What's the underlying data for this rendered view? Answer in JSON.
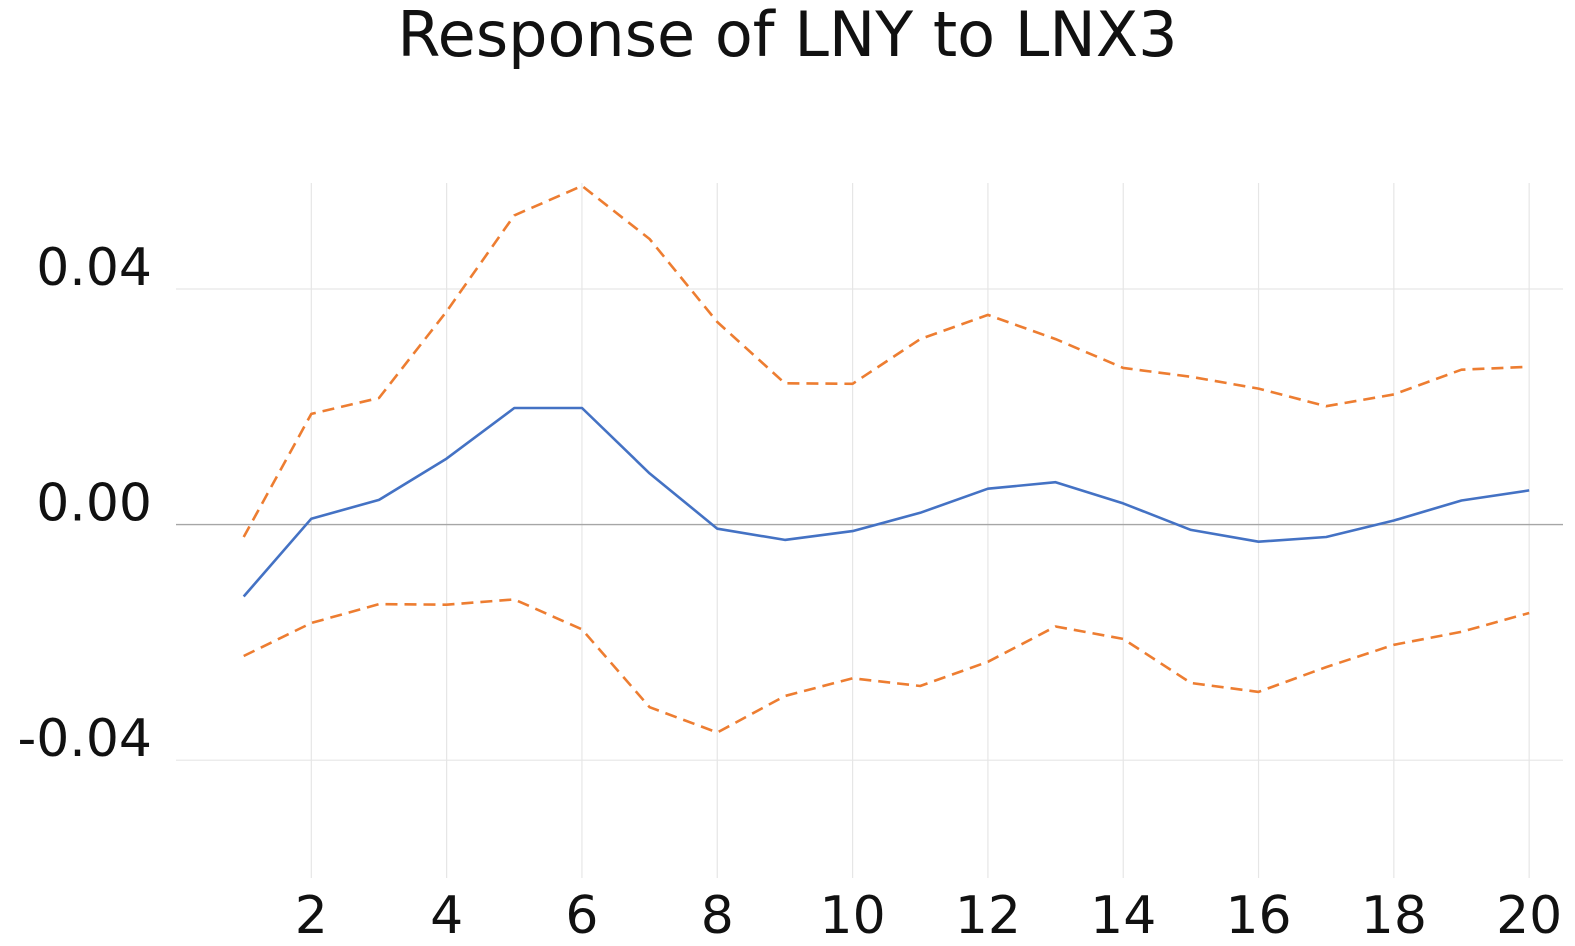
{
  "chart_data": {
    "type": "line",
    "title": "Response of LNY to LNX3",
    "xlabel": "",
    "ylabel": "",
    "x": [
      1,
      2,
      3,
      4,
      5,
      6,
      7,
      8,
      9,
      10,
      11,
      12,
      13,
      14,
      15,
      16,
      17,
      18,
      19,
      20
    ],
    "xlim": [
      0,
      20.5
    ],
    "ylim": [
      -0.06,
      0.058
    ],
    "x_ticks": [
      2,
      4,
      6,
      8,
      10,
      12,
      14,
      16,
      18,
      20
    ],
    "x_tick_labels": [
      "2",
      "4",
      "6",
      "8",
      "10",
      "12",
      "14",
      "16",
      "18",
      "20"
    ],
    "y_ticks": [
      0.04,
      0.0,
      -0.04
    ],
    "y_tick_labels": [
      "0.04",
      "0.00",
      "-0.04"
    ],
    "grid": true,
    "legend": "none",
    "series": [
      {
        "color": "#4472c4",
        "dash": "solid",
        "values": [
          -0.0122,
          0.001,
          0.0042,
          0.0112,
          0.0198,
          0.0198,
          0.0087,
          -0.0007,
          -0.0026,
          -0.0011,
          0.002,
          0.0061,
          0.0072,
          0.0036,
          -0.0009,
          -0.0029,
          -0.0021,
          0.0007,
          0.0041,
          0.0058
        ]
      },
      {
        "color": "#ed7d31",
        "dash": "dashed",
        "values": [
          -0.0021,
          0.0188,
          0.0215,
          0.0362,
          0.0525,
          0.0575,
          0.0485,
          0.0344,
          0.024,
          0.0239,
          0.0315,
          0.0356,
          0.0315,
          0.0266,
          0.0251,
          0.0231,
          0.0201,
          0.0221,
          0.0263,
          0.0268
        ]
      },
      {
        "color": "#ed7d31",
        "dash": "dashed",
        "values": [
          -0.0223,
          -0.0167,
          -0.0135,
          -0.0136,
          -0.0127,
          -0.0178,
          -0.031,
          -0.0353,
          -0.0291,
          -0.0261,
          -0.0274,
          -0.0233,
          -0.0173,
          -0.0194,
          -0.0269,
          -0.0284,
          -0.0242,
          -0.0204,
          -0.0182,
          -0.015
        ]
      }
    ],
    "colors": {
      "grid": "#e6e6e6",
      "zero_line": "#a6a6a6"
    }
  }
}
